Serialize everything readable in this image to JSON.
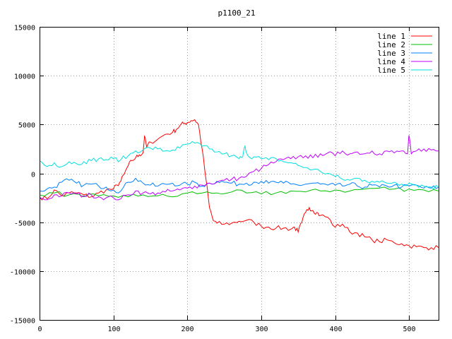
{
  "chart_data": {
    "type": "line",
    "title": "p1100_21",
    "xlabel": "",
    "ylabel": "",
    "xlim": [
      0,
      540
    ],
    "ylim": [
      -15000,
      15000
    ],
    "xticks": [
      0,
      100,
      200,
      300,
      400,
      500
    ],
    "yticks": [
      -15000,
      -10000,
      -5000,
      0,
      5000,
      10000,
      15000
    ],
    "grid": true,
    "legend_position": "top-right",
    "series": [
      {
        "name": "line 1",
        "color": "#ff0000",
        "x": [
          0,
          10,
          20,
          30,
          40,
          50,
          60,
          70,
          80,
          90,
          100,
          105,
          110,
          115,
          120,
          125,
          130,
          135,
          140,
          142,
          145,
          150,
          160,
          170,
          180,
          185,
          190,
          195,
          200,
          205,
          210,
          215,
          220,
          225,
          230,
          235,
          240,
          250,
          260,
          270,
          280,
          290,
          300,
          310,
          320,
          330,
          340,
          345,
          350,
          355,
          360,
          365,
          370,
          375,
          380,
          390,
          400,
          410,
          420,
          430,
          440,
          450,
          460,
          470,
          480,
          490,
          500,
          510,
          520,
          530,
          540
        ],
        "y": [
          -2400,
          -2600,
          -1700,
          -2300,
          -2000,
          -2000,
          -2200,
          -2400,
          -2000,
          -1700,
          -1600,
          -1200,
          -800,
          0,
          800,
          1300,
          1600,
          1900,
          2100,
          3800,
          2700,
          3200,
          3500,
          4000,
          4200,
          4500,
          4900,
          5100,
          5200,
          5400,
          5500,
          5000,
          2500,
          -500,
          -3500,
          -4800,
          -5100,
          -5200,
          -5100,
          -4900,
          -4800,
          -5000,
          -5400,
          -5500,
          -5600,
          -5600,
          -5700,
          -5500,
          -6000,
          -5000,
          -4000,
          -3500,
          -3800,
          -4000,
          -4300,
          -4500,
          -5500,
          -5200,
          -6000,
          -6100,
          -6500,
          -6800,
          -7000,
          -6800,
          -7100,
          -7200,
          -7400,
          -7500,
          -7600,
          -7600,
          -7600
        ]
      },
      {
        "name": "line 2",
        "color": "#00c000",
        "x": [
          0,
          20,
          40,
          60,
          80,
          100,
          120,
          140,
          160,
          180,
          200,
          220,
          240,
          260,
          280,
          300,
          320,
          340,
          360,
          380,
          400,
          420,
          440,
          460,
          480,
          500,
          520,
          540
        ],
        "y": [
          -2200,
          -2000,
          -2200,
          -2400,
          -2300,
          -2300,
          -2400,
          -2200,
          -2300,
          -2400,
          -2000,
          -2000,
          -2000,
          -1900,
          -2000,
          -2100,
          -2000,
          -1800,
          -1900,
          -1800,
          -1700,
          -1800,
          -1600,
          -1500,
          -1600,
          -1600,
          -1700,
          -1800
        ]
      },
      {
        "name": "line 3",
        "color": "#0080ff",
        "x": [
          0,
          10,
          20,
          30,
          40,
          50,
          60,
          70,
          80,
          90,
          100,
          110,
          120,
          130,
          140,
          150,
          160,
          170,
          180,
          190,
          200,
          210,
          220,
          230,
          240,
          250,
          260,
          270,
          280,
          290,
          300,
          310,
          320,
          330,
          340,
          350,
          360,
          370,
          380,
          390,
          400,
          410,
          420,
          430,
          440,
          450,
          460,
          470,
          480,
          490,
          500,
          510,
          520,
          530,
          540
        ],
        "y": [
          -1800,
          -1600,
          -1400,
          -900,
          -700,
          -1000,
          -1200,
          -1100,
          -1300,
          -1400,
          -1700,
          -1800,
          -900,
          -500,
          -1000,
          -1200,
          -1300,
          -1100,
          -1000,
          -1200,
          -1100,
          -900,
          -1300,
          -1000,
          -800,
          -900,
          -1000,
          -1100,
          -1000,
          -900,
          -800,
          -1000,
          -900,
          -1000,
          -1100,
          -1200,
          -1100,
          -1000,
          -1100,
          -1200,
          -1200,
          -1300,
          -1100,
          -1300,
          -1400,
          -1200,
          -1400,
          -1300,
          -1200,
          -1400,
          -1300,
          -1200,
          -1500,
          -1500,
          -1400
        ]
      },
      {
        "name": "line 4",
        "color": "#c000ff",
        "x": [
          0,
          10,
          20,
          30,
          40,
          50,
          60,
          70,
          80,
          90,
          100,
          110,
          120,
          130,
          140,
          150,
          160,
          170,
          180,
          190,
          200,
          210,
          220,
          230,
          240,
          250,
          260,
          270,
          280,
          290,
          300,
          310,
          320,
          330,
          340,
          350,
          360,
          370,
          380,
          390,
          400,
          410,
          420,
          430,
          440,
          450,
          460,
          470,
          480,
          490,
          498,
          500,
          503,
          510,
          520,
          530,
          540
        ],
        "y": [
          -2600,
          -2700,
          -2200,
          -2300,
          -2000,
          -2100,
          -2300,
          -2200,
          -2400,
          -2500,
          -2500,
          -2600,
          -2200,
          -1800,
          -2000,
          -2100,
          -2000,
          -1900,
          -1800,
          -1700,
          -1500,
          -1300,
          -1200,
          -1000,
          -900,
          -700,
          -600,
          -500,
          -300,
          200,
          500,
          900,
          1200,
          1400,
          1500,
          1700,
          1800,
          1600,
          2000,
          2100,
          1800,
          2300,
          2000,
          2200,
          2000,
          2300,
          2000,
          2300,
          2100,
          2300,
          2000,
          3900,
          2000,
          2300,
          2500,
          2400,
          2300
        ]
      },
      {
        "name": "line 5",
        "color": "#00e0e0",
        "x": [
          0,
          10,
          20,
          30,
          40,
          50,
          60,
          70,
          80,
          90,
          100,
          110,
          120,
          130,
          140,
          150,
          160,
          170,
          180,
          190,
          200,
          210,
          220,
          230,
          240,
          250,
          260,
          270,
          275,
          278,
          282,
          290,
          300,
          310,
          320,
          330,
          340,
          350,
          360,
          370,
          380,
          390,
          400,
          410,
          420,
          430,
          440,
          450,
          460,
          470,
          480,
          490,
          500,
          510,
          520,
          530,
          540
        ],
        "y": [
          1300,
          700,
          1100,
          700,
          1200,
          1000,
          1200,
          1300,
          1500,
          1400,
          1500,
          1400,
          1800,
          2300,
          2400,
          2600,
          2500,
          2300,
          2400,
          2600,
          3000,
          3100,
          2800,
          2500,
          2200,
          2000,
          1800,
          1500,
          1700,
          2800,
          1800,
          1700,
          1500,
          1400,
          1500,
          1200,
          1100,
          800,
          600,
          400,
          200,
          0,
          -300,
          -600,
          -700,
          -500,
          -700,
          -800,
          -900,
          -1000,
          -900,
          -1100,
          -1000,
          -1200,
          -1300,
          -1400,
          -1400
        ]
      }
    ]
  }
}
